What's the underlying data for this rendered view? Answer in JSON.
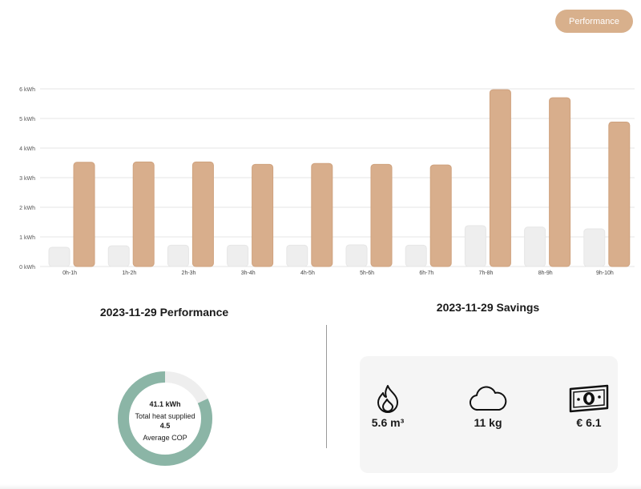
{
  "header": {
    "performance_button": "Performance"
  },
  "chart_data": {
    "type": "bar",
    "categories": [
      "0h-1h",
      "1h-2h",
      "2h-3h",
      "3h-4h",
      "4h-5h",
      "5h-6h",
      "6h-7h",
      "7h-8h",
      "8h-9h",
      "9h-10h"
    ],
    "series": [
      {
        "values": [
          0.65,
          0.7,
          0.72,
          0.72,
          0.72,
          0.73,
          0.72,
          1.38,
          1.33,
          1.27
        ]
      },
      {
        "values": [
          3.52,
          3.53,
          3.53,
          3.45,
          3.48,
          3.45,
          3.43,
          5.97,
          5.7,
          4.88
        ]
      }
    ],
    "yticks": [
      "0 kWh",
      "1 kWh",
      "2 kWh",
      "3 kWh",
      "4 kWh",
      "5 kWh",
      "6 kWh"
    ],
    "ylim": [
      0,
      6
    ],
    "grid": true,
    "colors": {
      "light": "#eeeeee",
      "main": "#d8ae8c"
    }
  },
  "performance": {
    "title": "2023-11-29 Performance",
    "heat_value": "41.1 kWh",
    "heat_label": "Total heat supplied",
    "cop_value": "4.5",
    "cop_label": "Average COP",
    "donut_fraction": 0.82,
    "colors": {
      "fill": "#8bb5a6",
      "track": "#eeeeee"
    }
  },
  "savings": {
    "title": "2023-11-29 Savings",
    "items": [
      {
        "icon": "flame-icon",
        "value": "5.6 m³"
      },
      {
        "icon": "cloud-icon",
        "value": "11 kg"
      },
      {
        "icon": "banknote-icon",
        "value": "€ 6.1"
      }
    ]
  }
}
